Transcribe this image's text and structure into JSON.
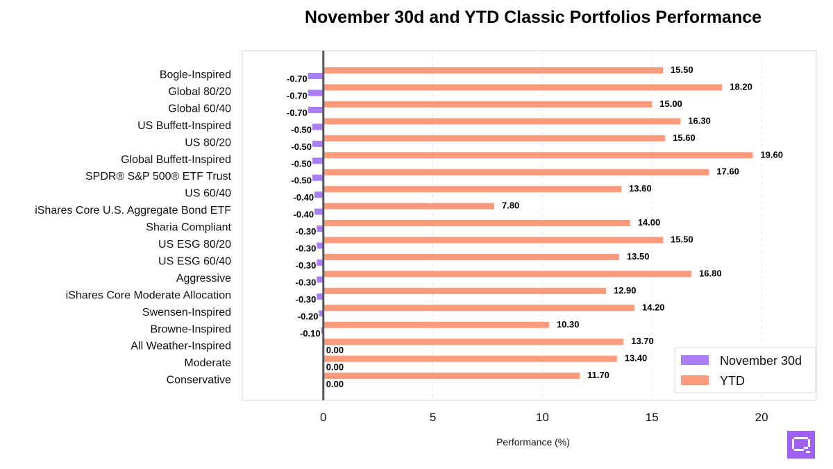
{
  "chart_data": {
    "type": "bar",
    "orientation": "horizontal",
    "title": "November 30d and YTD Classic Portfolios Performance",
    "xlabel": "Performance (%)",
    "ylabel": "",
    "xlim": [
      -3.7,
      22.5
    ],
    "xticks": [
      0,
      5,
      10,
      15,
      20
    ],
    "grid": "x-dashed",
    "legend_position": "lower-right",
    "categories": [
      "Bogle-Inspired",
      "Global 80/20",
      "Global 60/40",
      "US Buffett-Inspired",
      "US 80/20",
      "Global Buffett-Inspired",
      "SPDR® S&P 500® ETF Trust",
      "US 60/40",
      "iShares Core U.S. Aggregate Bond ETF",
      "Sharia Compliant",
      "US ESG 80/20",
      "US ESG 60/40",
      "Aggressive",
      "iShares Core Moderate Allocation",
      "Swensen-Inspired",
      "Browne-Inspired",
      "All Weather-Inspired",
      "Moderate",
      "Conservative"
    ],
    "series": [
      {
        "name": "November 30d",
        "color": "#a97ef7",
        "values": [
          -0.7,
          -0.7,
          -0.7,
          -0.5,
          -0.5,
          -0.5,
          -0.5,
          -0.4,
          -0.4,
          -0.3,
          -0.3,
          -0.3,
          -0.3,
          -0.3,
          -0.2,
          -0.1,
          0.0,
          0.0,
          0.0
        ],
        "labels": [
          "-0.70",
          "-0.70",
          "-0.70",
          "-0.50",
          "-0.50",
          "-0.50",
          "-0.50",
          "-0.40",
          "-0.40",
          "-0.30",
          "-0.30",
          "-0.30",
          "-0.30",
          "-0.30",
          "-0.20",
          "-0.10",
          "0.00",
          "0.00",
          "0.00"
        ]
      },
      {
        "name": "YTD",
        "color": "#fc9a7c",
        "values": [
          15.5,
          18.2,
          15.0,
          16.3,
          15.6,
          19.6,
          17.6,
          13.6,
          7.8,
          14.0,
          15.5,
          13.5,
          16.8,
          12.9,
          14.2,
          10.3,
          13.7,
          13.4,
          11.7
        ],
        "labels": [
          "15.50",
          "18.20",
          "15.00",
          "16.30",
          "15.60",
          "19.60",
          "17.60",
          "13.60",
          "7.80",
          "14.00",
          "15.50",
          "13.50",
          "16.80",
          "12.90",
          "14.20",
          "10.30",
          "13.70",
          "13.40",
          "11.70"
        ]
      }
    ],
    "logo_icon": "chat-bubble-logo-icon",
    "logo_color": "#a060f0"
  }
}
